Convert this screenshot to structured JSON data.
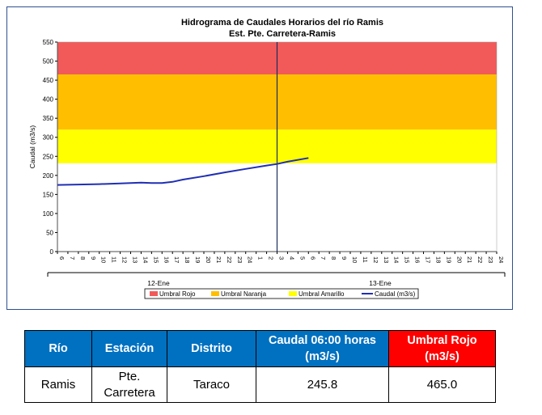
{
  "chart_data": {
    "type": "line",
    "title": "Hidrograma de Caudales Horarios del río Ramis",
    "subtitle": "Est. Pte. Carretera-Ramis",
    "ylabel": "Caudal (m3/s)",
    "ylim": [
      0,
      550
    ],
    "yticks": [
      0,
      50,
      100,
      150,
      200,
      250,
      300,
      350,
      400,
      450,
      500,
      550
    ],
    "x_hour_labels": [
      "6",
      "7",
      "8",
      "9",
      "10",
      "11",
      "12",
      "13",
      "14",
      "15",
      "16",
      "17",
      "18",
      "19",
      "20",
      "21",
      "22",
      "23",
      "24",
      "1",
      "2",
      "3",
      "4",
      "5",
      "6",
      "7",
      "8",
      "9",
      "10",
      "11",
      "12",
      "13",
      "14",
      "15",
      "16",
      "17",
      "18",
      "19",
      "20",
      "21",
      "22",
      "23",
      "24"
    ],
    "day_labels": [
      "12-Ene",
      "13-Ene"
    ],
    "bands": [
      {
        "name": "Umbral Rojo",
        "from": 465,
        "to": 550,
        "color": "#f25a5a"
      },
      {
        "name": "Umbral Naranja",
        "from": 320,
        "to": 465,
        "color": "#ffbf00"
      },
      {
        "name": "Umbral Amarillo",
        "from": 232,
        "to": 320,
        "color": "#ffff00"
      }
    ],
    "series": [
      {
        "name": "Caudal (m3/s)",
        "color": "#1f2fb4",
        "x": [
          "12-Ene 06:00",
          "12-Ene 08:00",
          "12-Ene 10:00",
          "12-Ene 12:00",
          "12-Ene 14:00",
          "12-Ene 15:00",
          "12-Ene 16:00",
          "12-Ene 17:00",
          "12-Ene 18:00",
          "12-Ene 20:00",
          "12-Ene 22:00",
          "13-Ene 00:00",
          "13-Ene 02:00",
          "13-Ene 03:00",
          "13-Ene 04:00",
          "13-Ene 06:00"
        ],
        "values": [
          175,
          176,
          177,
          179,
          181,
          180,
          180,
          183,
          189,
          198,
          208,
          217,
          226,
          230,
          236,
          245.8
        ]
      }
    ],
    "current_time_line": "13-Ene 03:00",
    "legend": {
      "position": "bottom",
      "entries": [
        "Umbral Rojo",
        "Umbral Naranja",
        "Umbral Amarillo",
        "Caudal (m3/s)"
      ]
    }
  },
  "table": {
    "headers": [
      "Río",
      "Estación",
      "Distrito",
      "Caudal 06:00 horas (m3/s)",
      "Umbral Rojo (m3/s)"
    ],
    "row": [
      "Ramis",
      "Pte. Carretera",
      "Taraco",
      "245.8",
      "465.0"
    ]
  }
}
